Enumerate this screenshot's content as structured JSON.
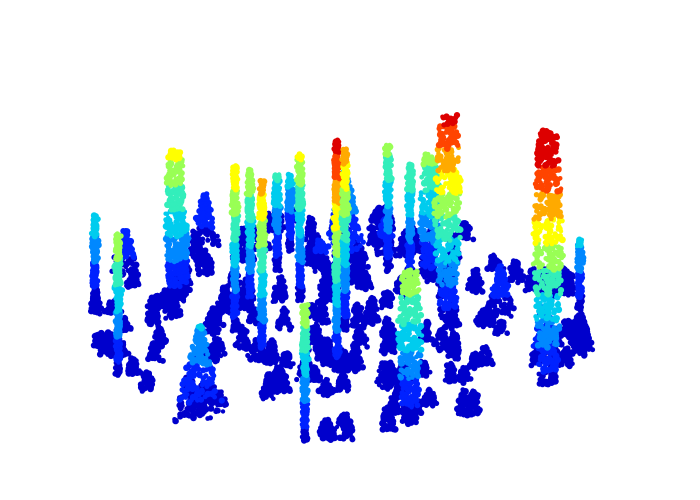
{
  "scene": {
    "kind": "lidar-forest-point-cloud",
    "colormap": [
      "#0000cc",
      "#0022ff",
      "#0088ff",
      "#00ccee",
      "#33eebb",
      "#99ff55",
      "#ffff00",
      "#ffaa00",
      "#ff4400",
      "#dd0000"
    ],
    "background": "#ffffff"
  }
}
